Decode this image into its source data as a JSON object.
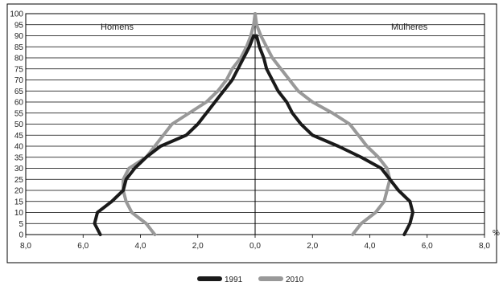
{
  "chart_data": {
    "type": "line",
    "chart_kind": "population pyramid",
    "title": "",
    "xlabel": "",
    "ylabel": "",
    "x_unit_label": "%",
    "left_label": "Homens",
    "right_label": "Mulheres",
    "xlim": [
      -8,
      8
    ],
    "ylim": [
      0,
      100
    ],
    "x_ticks": [
      -8,
      -6,
      -4,
      -2,
      0,
      2,
      4,
      6,
      8
    ],
    "x_tick_labels": [
      "8,0",
      "6,0",
      "4,0",
      "2,0",
      "0,0",
      "2,0",
      "4,0",
      "6,0",
      "8,0"
    ],
    "y_ticks": [
      0,
      5,
      10,
      15,
      20,
      25,
      30,
      35,
      40,
      45,
      50,
      55,
      60,
      65,
      70,
      75,
      80,
      85,
      90,
      95,
      100
    ],
    "grid": "horizontal lines every 5",
    "legend_position": "bottom-center",
    "series": [
      {
        "name": "1991",
        "color": "#1a1a1a",
        "ages": [
          0,
          5,
          10,
          15,
          20,
          25,
          30,
          35,
          40,
          45,
          50,
          55,
          60,
          65,
          70,
          75,
          80,
          85,
          90
        ],
        "homens": [
          5.4,
          5.6,
          5.5,
          5.0,
          4.6,
          4.5,
          4.2,
          3.8,
          3.3,
          2.4,
          2.0,
          1.7,
          1.4,
          1.1,
          0.8,
          0.6,
          0.4,
          0.2,
          0.05
        ],
        "mulheres": [
          5.2,
          5.4,
          5.5,
          5.4,
          5.0,
          4.7,
          4.4,
          3.7,
          2.9,
          2.0,
          1.6,
          1.3,
          1.1,
          0.8,
          0.6,
          0.4,
          0.3,
          0.15,
          0.05
        ]
      },
      {
        "name": "2010",
        "color": "#999999",
        "ages": [
          0,
          5,
          10,
          15,
          20,
          25,
          30,
          35,
          40,
          45,
          50,
          55,
          60,
          65,
          70,
          75,
          80,
          85,
          90,
          95,
          100
        ],
        "homens": [
          3.5,
          3.8,
          4.3,
          4.5,
          4.6,
          4.6,
          4.4,
          3.8,
          3.5,
          3.2,
          2.9,
          2.3,
          1.7,
          1.3,
          1.0,
          0.8,
          0.5,
          0.3,
          0.15,
          0.05,
          0.0
        ],
        "mulheres": [
          3.4,
          3.7,
          4.2,
          4.5,
          4.6,
          4.7,
          4.6,
          4.3,
          3.9,
          3.6,
          3.3,
          2.7,
          2.0,
          1.5,
          1.2,
          0.9,
          0.6,
          0.4,
          0.2,
          0.05,
          0.0
        ]
      }
    ]
  }
}
